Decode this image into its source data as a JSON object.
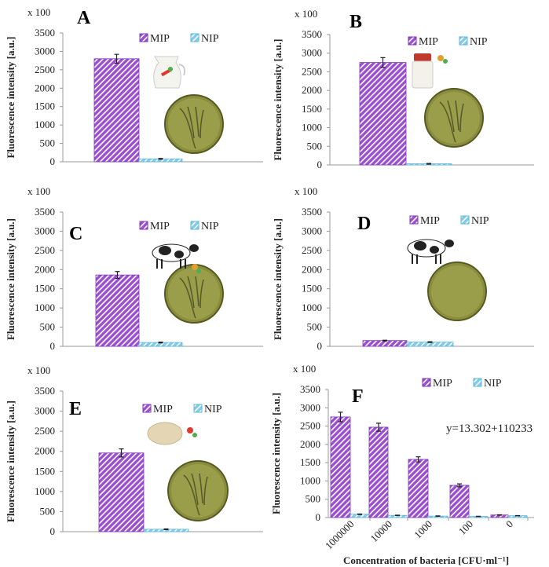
{
  "colors": {
    "mip": "#9b4fd0",
    "mip_edge": "#7d35b8",
    "nip": "#7fcbe8",
    "nip_edge": "#5fb5d8",
    "axis": "#999999"
  },
  "chart_data": [
    {
      "type": "bar",
      "title": "A",
      "scale_label": "x 100",
      "ylabel": "Fluorescence intensity [a.u.]",
      "ylim": [
        0,
        3500
      ],
      "yticks": [
        0,
        500,
        1000,
        1500,
        2000,
        2500,
        3000,
        3500
      ],
      "legend": [
        "MIP",
        "NIP"
      ],
      "legend_placement": "top-right",
      "categories": [
        ""
      ],
      "series": [
        {
          "name": "MIP",
          "values": [
            2800
          ],
          "errors": [
            120
          ]
        },
        {
          "name": "NIP",
          "values": [
            80
          ],
          "errors": [
            10
          ]
        }
      ]
    },
    {
      "type": "bar",
      "title": "B",
      "scale_label": "x 100",
      "ylabel": "Fluorescence intensity [a.u.]",
      "ylim": [
        0,
        3500
      ],
      "yticks": [
        0,
        500,
        1000,
        1500,
        2000,
        2500,
        3000,
        3500
      ],
      "legend": [
        "MIP",
        "NIP"
      ],
      "legend_placement": "top-right",
      "categories": [
        ""
      ],
      "series": [
        {
          "name": "MIP",
          "values": [
            2750
          ],
          "errors": [
            130
          ]
        },
        {
          "name": "NIP",
          "values": [
            30
          ],
          "errors": [
            10
          ]
        }
      ]
    },
    {
      "type": "bar",
      "title": "C",
      "scale_label": "x 100",
      "ylabel": "Fluorescence intensity [a.u.]",
      "ylim": [
        0,
        3500
      ],
      "yticks": [
        0,
        500,
        1000,
        1500,
        2000,
        2500,
        3000,
        3500
      ],
      "legend": [
        "MIP",
        "NIP"
      ],
      "legend_placement": "top-right",
      "categories": [
        ""
      ],
      "series": [
        {
          "name": "MIP",
          "values": [
            1860
          ],
          "errors": [
            90
          ]
        },
        {
          "name": "NIP",
          "values": [
            100
          ],
          "errors": [
            10
          ]
        }
      ]
    },
    {
      "type": "bar",
      "title": "D",
      "scale_label": "x 100",
      "ylabel": "Fluorescence intensity [a.u.]",
      "ylim": [
        0,
        3500
      ],
      "yticks": [
        0,
        500,
        1000,
        1500,
        2000,
        2500,
        3000,
        3500
      ],
      "legend": [
        "MIP",
        "NIP"
      ],
      "legend_placement": "top-right",
      "categories": [
        ""
      ],
      "series": [
        {
          "name": "MIP",
          "values": [
            150
          ],
          "errors": [
            10
          ]
        },
        {
          "name": "NIP",
          "values": [
            110
          ],
          "errors": [
            10
          ]
        }
      ]
    },
    {
      "type": "bar",
      "title": "E",
      "scale_label": "x 100",
      "ylabel": "Fluorescence intensity [a.u.]",
      "ylim": [
        0,
        3500
      ],
      "yticks": [
        0,
        500,
        1000,
        1500,
        2000,
        2500,
        3000,
        3500
      ],
      "legend": [
        "MIP",
        "NIP"
      ],
      "legend_placement": "top-right",
      "categories": [
        ""
      ],
      "series": [
        {
          "name": "MIP",
          "values": [
            1960
          ],
          "errors": [
            100
          ]
        },
        {
          "name": "NIP",
          "values": [
            60
          ],
          "errors": [
            10
          ]
        }
      ]
    },
    {
      "type": "bar",
      "title": "F",
      "scale_label": "x 100",
      "ylabel": "Fluorescence intensity [a.u.]",
      "xlabel": "Concentration of bacteria [CFU·ml⁻¹]",
      "ylim": [
        0,
        3500
      ],
      "yticks": [
        0,
        500,
        1000,
        1500,
        2000,
        2500,
        3000,
        3500
      ],
      "legend": [
        "MIP",
        "NIP"
      ],
      "legend_placement": "top-right",
      "annotation": "y=13.302+110233",
      "categories": [
        "1000000",
        "10000",
        "1000",
        "100",
        "0"
      ],
      "series": [
        {
          "name": "MIP",
          "values": [
            2750,
            2470,
            1590,
            880,
            70
          ],
          "errors": [
            130,
            110,
            70,
            40,
            5
          ]
        },
        {
          "name": "NIP",
          "values": [
            90,
            60,
            40,
            30,
            50
          ],
          "errors": [
            8,
            5,
            5,
            5,
            5
          ]
        }
      ]
    }
  ]
}
